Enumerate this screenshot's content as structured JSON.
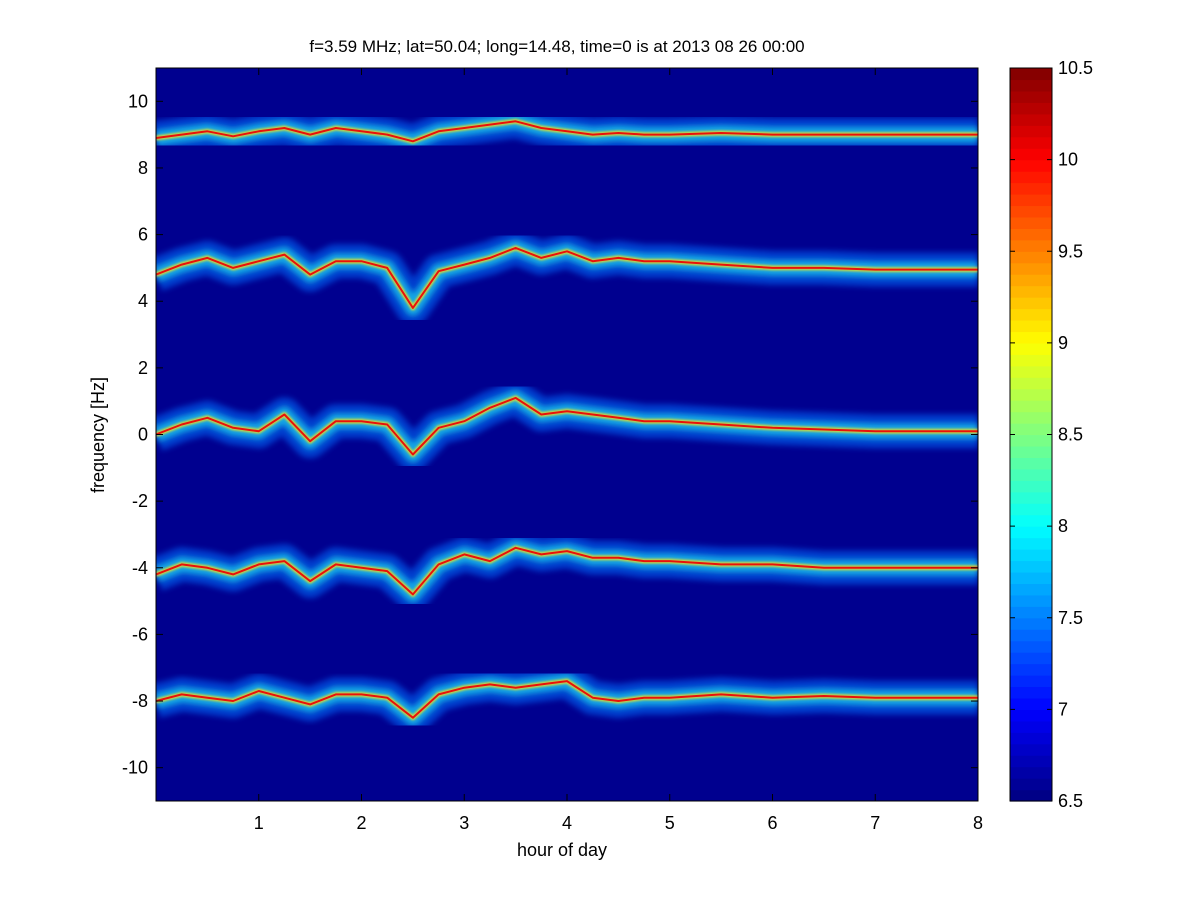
{
  "chart_data": {
    "type": "heatmap",
    "title": "f=3.59 MHz;  lat=50.04; long=14.48, time=0 is at 2013 08 26 00:00",
    "xlabel": "hour of day",
    "ylabel": "frequency [Hz]",
    "xlim": [
      0,
      8
    ],
    "ylim": [
      -11,
      11
    ],
    "xticks": [
      "1",
      "2",
      "3",
      "4",
      "5",
      "6",
      "7",
      "8"
    ],
    "yticks": [
      "-10",
      "-8",
      "-6",
      "-4",
      "-2",
      "0",
      "2",
      "4",
      "6",
      "8",
      "10"
    ],
    "colorbar": {
      "range": [
        6.5,
        10.5
      ],
      "colormap": "jet",
      "ticks": [
        "6.5",
        "7",
        "7.5",
        "8",
        "8.5",
        "9",
        "9.5",
        "10",
        "10.5"
      ]
    },
    "background_color": "#00008f",
    "traces": [
      {
        "x": [
          0,
          0.25,
          0.5,
          0.75,
          1.0,
          1.25,
          1.5,
          1.75,
          2.0,
          2.25,
          2.5,
          2.75,
          3.0,
          3.25,
          3.5,
          3.75,
          4.0,
          4.25,
          4.5,
          4.75,
          5.0,
          5.5,
          6.0,
          6.5,
          7.0,
          7.5,
          8.0
        ],
        "y": [
          8.9,
          9.0,
          9.1,
          8.95,
          9.1,
          9.2,
          9.0,
          9.2,
          9.1,
          9.0,
          8.8,
          9.1,
          9.2,
          9.3,
          9.4,
          9.2,
          9.1,
          9.0,
          9.05,
          9.0,
          9.0,
          9.05,
          9.0,
          9.0,
          9.0,
          9.0,
          9.0
        ]
      },
      {
        "x": [
          0,
          0.25,
          0.5,
          0.75,
          1.0,
          1.25,
          1.5,
          1.75,
          2.0,
          2.25,
          2.5,
          2.75,
          3.0,
          3.25,
          3.5,
          3.75,
          4.0,
          4.25,
          4.5,
          4.75,
          5.0,
          5.5,
          6.0,
          6.5,
          7.0,
          7.5,
          8.0
        ],
        "y": [
          4.8,
          5.1,
          5.3,
          5.0,
          5.2,
          5.4,
          4.8,
          5.2,
          5.2,
          5.0,
          3.8,
          4.9,
          5.1,
          5.3,
          5.6,
          5.3,
          5.5,
          5.2,
          5.3,
          5.2,
          5.2,
          5.1,
          5.0,
          5.0,
          4.95,
          4.95,
          4.95
        ]
      },
      {
        "x": [
          0,
          0.25,
          0.5,
          0.75,
          1.0,
          1.25,
          1.5,
          1.75,
          2.0,
          2.25,
          2.5,
          2.75,
          3.0,
          3.25,
          3.5,
          3.75,
          4.0,
          4.25,
          4.5,
          4.75,
          5.0,
          5.5,
          6.0,
          6.5,
          7.0,
          7.5,
          8.0
        ],
        "y": [
          0.0,
          0.3,
          0.5,
          0.2,
          0.1,
          0.6,
          -0.2,
          0.4,
          0.4,
          0.3,
          -0.6,
          0.2,
          0.4,
          0.8,
          1.1,
          0.6,
          0.7,
          0.6,
          0.5,
          0.4,
          0.4,
          0.3,
          0.2,
          0.15,
          0.1,
          0.1,
          0.1
        ]
      },
      {
        "x": [
          0,
          0.25,
          0.5,
          0.75,
          1.0,
          1.25,
          1.5,
          1.75,
          2.0,
          2.25,
          2.5,
          2.75,
          3.0,
          3.25,
          3.5,
          3.75,
          4.0,
          4.25,
          4.5,
          4.75,
          5.0,
          5.5,
          6.0,
          6.5,
          7.0,
          7.5,
          8.0
        ],
        "y": [
          -4.2,
          -3.9,
          -4.0,
          -4.2,
          -3.9,
          -3.8,
          -4.4,
          -3.9,
          -4.0,
          -4.1,
          -4.8,
          -3.9,
          -3.6,
          -3.8,
          -3.4,
          -3.6,
          -3.5,
          -3.7,
          -3.7,
          -3.8,
          -3.8,
          -3.9,
          -3.9,
          -4.0,
          -4.0,
          -4.0,
          -4.0
        ]
      },
      {
        "x": [
          0,
          0.25,
          0.5,
          0.75,
          1.0,
          1.25,
          1.5,
          1.75,
          2.0,
          2.25,
          2.5,
          2.75,
          3.0,
          3.25,
          3.5,
          3.75,
          4.0,
          4.25,
          4.5,
          4.75,
          5.0,
          5.5,
          6.0,
          6.5,
          7.0,
          7.5,
          8.0
        ],
        "y": [
          -8.0,
          -7.8,
          -7.9,
          -8.0,
          -7.7,
          -7.9,
          -8.1,
          -7.8,
          -7.8,
          -7.9,
          -8.5,
          -7.8,
          -7.6,
          -7.5,
          -7.6,
          -7.5,
          -7.4,
          -7.9,
          -8.0,
          -7.9,
          -7.9,
          -7.8,
          -7.9,
          -7.85,
          -7.9,
          -7.9,
          -7.9
        ]
      }
    ]
  }
}
